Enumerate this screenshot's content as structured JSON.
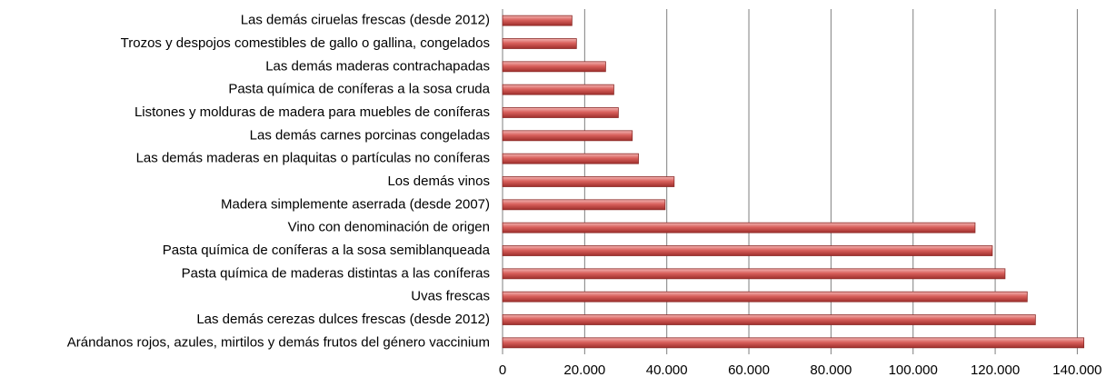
{
  "chart_data": {
    "type": "bar",
    "orientation": "horizontal",
    "categories": [
      "Las demás ciruelas frescas (desde 2012)",
      "Trozos y despojos comestibles de gallo o gallina, congelados",
      "Las demás maderas contrachapadas",
      "Pasta química de coníferas a la sosa cruda",
      "Listones y molduras de madera para muebles de coníferas",
      "Las demás carnes porcinas congeladas",
      "Las demás maderas en plaquitas o partículas no coníferas",
      "Los demás vinos",
      "Madera simplemente aserrada (desde 2007)",
      "Vino con denominación de origen",
      "Pasta química de coníferas a la sosa semiblanqueada ",
      "Pasta química de maderas distintas a las coníferas",
      "Uvas frescas",
      "Las demás cerezas dulces frescas (desde 2012)",
      "Arándanos rojos, azules, mirtilos y demás frutos del género vaccinium"
    ],
    "values": [
      16900,
      18000,
      25100,
      27100,
      28200,
      31600,
      33100,
      41800,
      39600,
      115100,
      119300,
      122400,
      127800,
      129800,
      141600
    ],
    "color": "#c0504d",
    "xlim": [
      0,
      145000
    ],
    "xticks": [
      0,
      {
        "value": 20000,
        "label": "20.000"
      },
      {
        "value": 40000,
        "label": "40.000"
      },
      {
        "value": 60000,
        "label": "60.000"
      },
      {
        "value": 80000,
        "label": "80.000"
      },
      {
        "value": 100000,
        "label": "100.000"
      },
      {
        "value": 120000,
        "label": "120.000"
      },
      {
        "value": 140000,
        "label": "140.000"
      }
    ],
    "grid": true
  }
}
